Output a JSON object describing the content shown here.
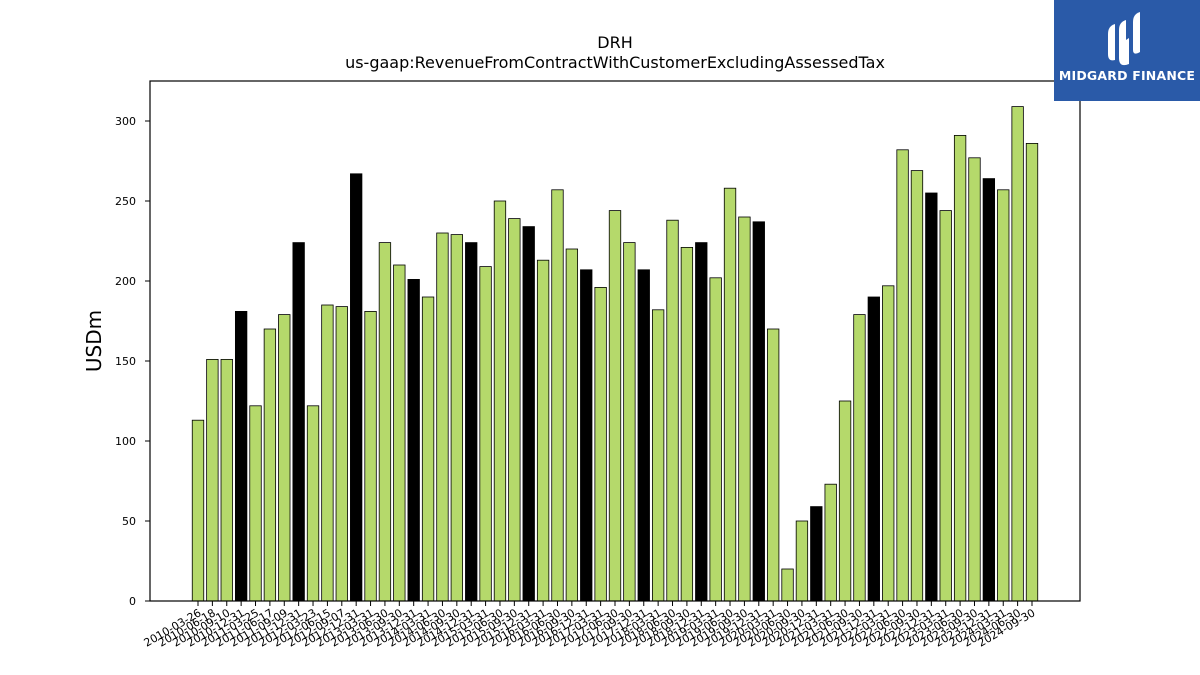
{
  "brand": {
    "name": "MIDGARD FINANCE",
    "bg_color": "#2a5aa8"
  },
  "chart_data": {
    "type": "bar",
    "title": "DRH",
    "subtitle": "us-gaap:RevenueFromContractWithCustomerExcludingAssessedTax",
    "xlabel": "",
    "ylabel": "USDm",
    "ylim": [
      0,
      325
    ],
    "yticks": [
      0,
      50,
      100,
      150,
      200,
      250,
      300
    ],
    "grid": false,
    "legend": "none",
    "colors": {
      "quarter": "#b5d96b",
      "fiscal_year_end": "#000000",
      "edge": "#000000"
    },
    "categories": [
      "2010-03-26",
      "2010-06-18",
      "2010-09-10",
      "2010-12-31",
      "2011-03-25",
      "2011-06-17",
      "2011-09-09",
      "2011-12-31",
      "2012-03-23",
      "2012-06-15",
      "2012-09-07",
      "2012-12-31",
      "2013-03-31",
      "2013-06-30",
      "2013-09-30",
      "2013-12-31",
      "2014-03-31",
      "2014-06-30",
      "2014-09-30",
      "2014-12-31",
      "2015-03-31",
      "2015-06-30",
      "2015-09-30",
      "2015-12-31",
      "2016-03-31",
      "2016-06-30",
      "2016-09-30",
      "2016-12-31",
      "2017-03-31",
      "2017-06-30",
      "2017-09-30",
      "2017-12-31",
      "2018-03-31",
      "2018-06-30",
      "2018-09-30",
      "2018-12-31",
      "2019-03-31",
      "2019-06-30",
      "2019-09-30",
      "2019-12-31",
      "2020-03-31",
      "2020-06-30",
      "2020-09-30",
      "2020-12-31",
      "2021-03-31",
      "2021-06-30",
      "2021-09-30",
      "2021-12-31",
      "2022-03-31",
      "2022-06-30",
      "2022-09-30",
      "2022-12-31",
      "2023-03-31",
      "2023-06-30",
      "2023-09-30",
      "2023-12-31",
      "2024-03-31",
      "2024-06-30",
      "2024-09-30"
    ],
    "values": [
      113,
      151,
      151,
      181,
      122,
      170,
      179,
      224,
      122,
      185,
      184,
      267,
      181,
      224,
      210,
      201,
      190,
      230,
      229,
      224,
      209,
      250,
      239,
      234,
      213,
      257,
      220,
      207,
      196,
      244,
      224,
      207,
      182,
      238,
      221,
      224,
      202,
      258,
      240,
      237,
      170,
      20,
      50,
      59,
      73,
      125,
      179,
      190,
      197,
      282,
      269,
      255,
      244,
      291,
      277,
      264,
      257,
      309,
      286
    ],
    "highlight": [
      false,
      false,
      false,
      true,
      false,
      false,
      false,
      true,
      false,
      false,
      false,
      true,
      false,
      false,
      false,
      true,
      false,
      false,
      false,
      true,
      false,
      false,
      false,
      true,
      false,
      false,
      false,
      true,
      false,
      false,
      false,
      true,
      false,
      false,
      false,
      true,
      false,
      false,
      false,
      true,
      false,
      false,
      false,
      true,
      false,
      false,
      false,
      true,
      false,
      false,
      false,
      true,
      false,
      false,
      false,
      true,
      false,
      false,
      false
    ]
  }
}
